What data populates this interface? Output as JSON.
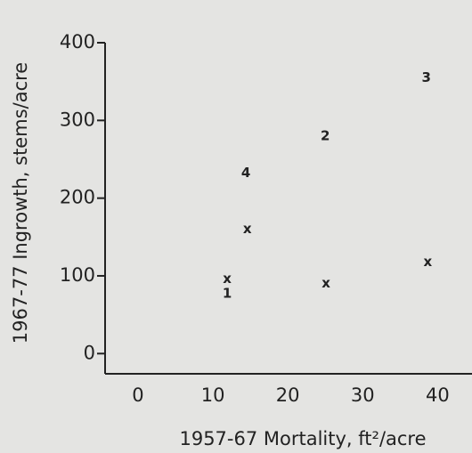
{
  "chart_data": {
    "type": "scatter",
    "xlabel": "1957-67  Mortality, ft²/acre",
    "ylabel": "1967-77  Ingrowth, stems/acre",
    "x": [
      38.5,
      25,
      14.4,
      14.6,
      11.9,
      11.9,
      25.1,
      38.7
    ],
    "values": [
      355,
      280,
      232,
      160,
      96,
      77,
      90,
      118
    ],
    "labels": [
      "3",
      "2",
      "4",
      "x",
      "x",
      "1",
      "x",
      "x"
    ],
    "xlim": [
      -4.4,
      44.6
    ],
    "ylim": [
      -26,
      400
    ],
    "xticks": [
      0,
      10,
      20,
      30,
      40
    ],
    "yticks": [
      0,
      100,
      200,
      300,
      400
    ],
    "color": "#222222"
  }
}
